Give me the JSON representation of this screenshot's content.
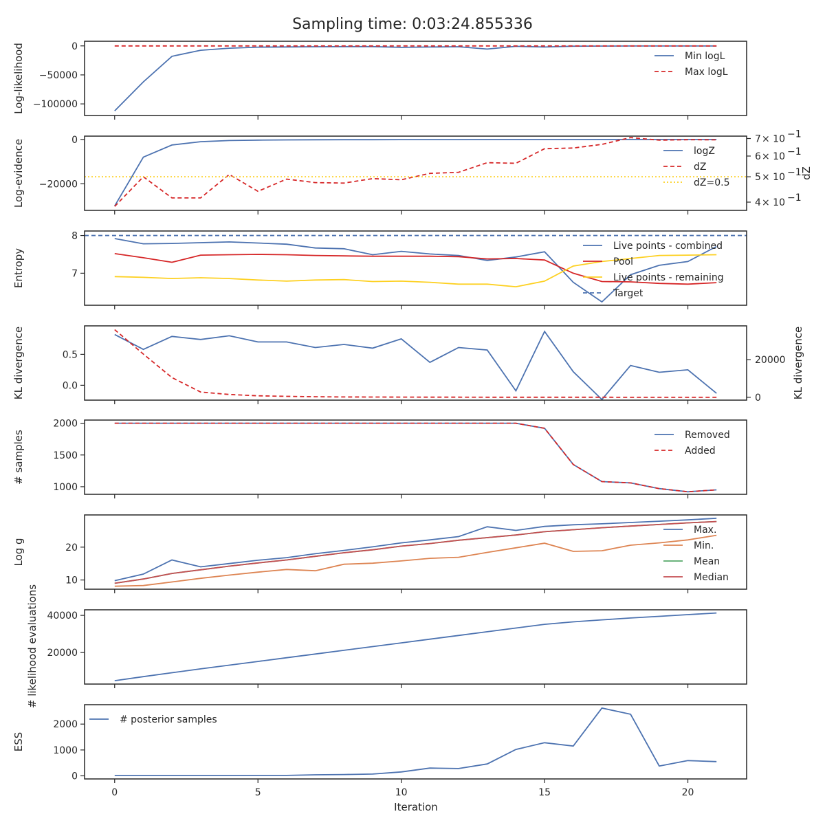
{
  "colors": {
    "blue": "#4c72b0",
    "red": "#d62728",
    "yellow": "#fdd020",
    "orange": "#dd8452",
    "green": "#55a868",
    "brown": "#c44e52"
  },
  "chart_data": {
    "type": "line",
    "title": "Sampling time: 0:03:24.855336",
    "shared_x": {
      "label": "Iteration",
      "ticks": [
        0,
        5,
        10,
        15,
        20
      ],
      "xlim": [
        -1.05,
        22.05
      ],
      "x": [
        0,
        1,
        2,
        3,
        4,
        5,
        6,
        7,
        8,
        9,
        10,
        11,
        12,
        13,
        14,
        15,
        16,
        17,
        18,
        19,
        20,
        21
      ]
    },
    "panels": [
      {
        "ylabel": "Log-likelihood",
        "ylim": [
          -120000,
          8000
        ],
        "yticks": [
          0,
          -50000,
          -100000
        ],
        "yticklabels": [
          "0",
          "−50000",
          "−100000"
        ],
        "legend": "top-right",
        "series": [
          {
            "name": "Min logL",
            "color": "blue",
            "dash": "solid",
            "values": [
              -112000,
              -62000,
              -18000,
              -7500,
              -4000,
              -2200,
              -1800,
              -1500,
              -1300,
              -1200,
              -2500,
              -2000,
              -1500,
              -5500,
              -800,
              -2000,
              -500,
              -300,
              -200,
              -200,
              -150,
              -120
            ]
          },
          {
            "name": "Max logL",
            "color": "red",
            "dash": "dashed",
            "values": [
              0,
              0,
              0,
              0,
              0,
              0,
              0,
              0,
              0,
              0,
              0,
              0,
              0,
              0,
              0,
              0,
              0,
              0,
              0,
              0,
              0,
              0
            ]
          }
        ]
      },
      {
        "ylabel": "Log-evidence",
        "ylim": [
          -32000,
          1500
        ],
        "yticks": [
          0,
          -20000
        ],
        "yticklabels": [
          "0",
          "−20000"
        ],
        "legend": "right",
        "series": [
          {
            "name": "logZ",
            "color": "blue",
            "dash": "solid",
            "values": [
              -30000,
              -8000,
              -2500,
              -1000,
              -500,
              -300,
              -200,
              -150,
              -120,
              -100,
              -90,
              -80,
              -70,
              -60,
              -50,
              -45,
              -40,
              -35,
              -30,
              -28,
              -26,
              -25
            ]
          },
          {
            "name": "dZ",
            "color": "red",
            "dash": "dashed",
            "axis": "right",
            "values": [
              0.385,
              0.5,
              0.415,
              0.415,
              0.51,
              0.44,
              0.49,
              0.475,
              0.473,
              0.492,
              0.487,
              0.515,
              0.52,
              0.566,
              0.563,
              0.64,
              0.644,
              0.665,
              0.706,
              0.69,
              0.693,
              0.692
            ]
          },
          {
            "name": "dZ=0.5",
            "color": "yellow",
            "dash": "dotted",
            "axis": "right",
            "hline": 0.5
          }
        ],
        "right_axis": {
          "label": "dZ",
          "scale": "log",
          "ylim": [
            0.372,
            0.715
          ],
          "ticks": [
            0.4,
            0.5,
            0.6,
            0.7
          ],
          "ticklabels": [
            {
              "mant": "4",
              "exp": "−1"
            },
            {
              "mant": "5",
              "exp": "−1"
            },
            {
              "mant": "6",
              "exp": "−1"
            },
            {
              "mant": "7",
              "exp": "−1"
            }
          ]
        }
      },
      {
        "ylabel": "Entropy",
        "ylim": [
          6.15,
          8.12
        ],
        "yticks": [
          8,
          7
        ],
        "yticklabels": [
          "8",
          "7"
        ],
        "legend": "right",
        "series": [
          {
            "name": "Live points - combined",
            "color": "blue",
            "dash": "solid",
            "values": [
              7.92,
              7.78,
              7.79,
              7.81,
              7.83,
              7.8,
              7.77,
              7.67,
              7.65,
              7.49,
              7.58,
              7.51,
              7.47,
              7.34,
              7.43,
              7.57,
              6.76,
              6.24,
              6.96,
              7.21,
              7.31,
              7.71
            ]
          },
          {
            "name": "Pool",
            "color": "red",
            "dash": "solid",
            "values": [
              7.52,
              7.41,
              7.29,
              7.48,
              7.49,
              7.5,
              7.49,
              7.47,
              7.46,
              7.45,
              7.45,
              7.45,
              7.44,
              7.38,
              7.39,
              7.35,
              7.0,
              6.78,
              6.77,
              6.73,
              6.71,
              6.75
            ]
          },
          {
            "name": "Live points - remaining",
            "color": "yellow",
            "dash": "solid",
            "values": [
              6.91,
              6.89,
              6.86,
              6.88,
              6.86,
              6.82,
              6.79,
              6.82,
              6.83,
              6.78,
              6.79,
              6.76,
              6.71,
              6.71,
              6.64,
              6.79,
              7.19,
              7.31,
              7.39,
              7.47,
              7.48,
              7.49
            ]
          },
          {
            "name": "Target",
            "color": "blue",
            "dash": "dashed",
            "hline": 8.0
          }
        ]
      },
      {
        "ylabel": "KL divergence",
        "ylim": [
          -0.24,
          0.96
        ],
        "yticks": [
          0.5,
          0.0
        ],
        "yticklabels": [
          "0.5",
          "0.0"
        ],
        "series": [
          {
            "name": "",
            "color": "blue",
            "dash": "solid",
            "values": [
              0.82,
              0.58,
              0.79,
              0.74,
              0.8,
              0.7,
              0.7,
              0.61,
              0.66,
              0.6,
              0.75,
              0.37,
              0.61,
              0.57,
              -0.09,
              0.87,
              0.22,
              -0.23,
              0.32,
              0.21,
              0.25,
              -0.13
            ]
          },
          {
            "name": "",
            "color": "red",
            "dash": "dashed",
            "axis": "right",
            "values": [
              36000,
              23000,
              10500,
              2800,
              1500,
              800,
              500,
              300,
              200,
              150,
              100,
              80,
              60,
              50,
              40,
              30,
              25,
              20,
              15,
              12,
              10,
              8
            ]
          }
        ],
        "right_axis": {
          "label": "KL divergence",
          "scale": "linear",
          "ylim": [
            -1500,
            38000
          ],
          "ticks": [
            20000,
            0
          ],
          "ticklabels": [
            "20000",
            "0"
          ]
        }
      },
      {
        "ylabel": "# samples",
        "ylim": [
          880,
          2050
        ],
        "yticks": [
          2000,
          1500,
          1000
        ],
        "yticklabels": [
          "2000",
          "1500",
          "1000"
        ],
        "legend": "top-right",
        "series": [
          {
            "name": "Removed",
            "color": "blue",
            "dash": "solid",
            "values": [
              2000,
              2000,
              2000,
              2000,
              2000,
              2000,
              2000,
              2000,
              2000,
              2000,
              2000,
              2000,
              2000,
              2000,
              2000,
              1920,
              1350,
              1080,
              1060,
              970,
              920,
              950
            ]
          },
          {
            "name": "Added",
            "color": "red",
            "dash": "dashed",
            "values": [
              2000,
              2000,
              2000,
              2000,
              2000,
              2000,
              2000,
              2000,
              2000,
              2000,
              2000,
              2000,
              2000,
              2000,
              2000,
              1920,
              1350,
              1080,
              1060,
              970,
              920,
              950
            ]
          }
        ]
      },
      {
        "ylabel": "Log g",
        "ylim": [
          7.2,
          29.8
        ],
        "yticks": [
          20,
          10
        ],
        "yticklabels": [
          "20",
          "10"
        ],
        "legend": "right",
        "series": [
          {
            "name": "Max.",
            "color": "blue",
            "dash": "solid",
            "values": [
              9.8,
              11.8,
              16.1,
              14,
              15,
              16,
              16.8,
              18,
              19,
              20.1,
              21.3,
              22.2,
              23.2,
              26.2,
              25.1,
              26.3,
              26.8,
              27.1,
              27.5,
              27.9,
              28.3,
              28.8
            ]
          },
          {
            "name": "Min.",
            "color": "orange",
            "dash": "solid",
            "values": [
              8.1,
              8.3,
              9.4,
              10.5,
              11.5,
              12.4,
              13.2,
              12.8,
              14.8,
              15.1,
              15.8,
              16.6,
              16.9,
              18.4,
              19.8,
              21.2,
              18.7,
              18.9,
              20.6,
              21.3,
              22.2,
              23.6
            ]
          },
          {
            "name": "Mean",
            "color": "green",
            "dash": "solid",
            "values": [
              9,
              10.3,
              12,
              13.1,
              14.2,
              15.2,
              16.1,
              17.2,
              18.3,
              19.2,
              20.3,
              21.1,
              22.1,
              22.9,
              23.7,
              24.7,
              25.3,
              25.9,
              26.4,
              26.9,
              27.4,
              27.8
            ]
          },
          {
            "name": "Median",
            "color": "brown",
            "dash": "solid",
            "values": [
              9,
              10.3,
              12,
              13.1,
              14.2,
              15.2,
              16.1,
              17.2,
              18.3,
              19.2,
              20.3,
              21.1,
              22.1,
              22.9,
              23.7,
              24.7,
              25.3,
              25.9,
              26.4,
              26.9,
              27.4,
              27.8
            ]
          }
        ]
      },
      {
        "ylabel": "# likelihood evaluations",
        "ylim": [
          3000,
          43000
        ],
        "yticks": [
          40000,
          20000
        ],
        "yticklabels": [
          "40000",
          "20000"
        ],
        "series": [
          {
            "name": "",
            "color": "blue",
            "dash": "solid",
            "values": [
              4800,
              7000,
              9100,
              11200,
              13200,
              15200,
              17200,
              19200,
              21200,
              23200,
              25200,
              27200,
              29200,
              31200,
              33200,
              35200,
              36500,
              37600,
              38600,
              39500,
              40400,
              41300
            ]
          }
        ]
      },
      {
        "ylabel": "ESS",
        "ylim": [
          -120,
          2750
        ],
        "yticks": [
          2000,
          1000,
          0
        ],
        "yticklabels": [
          "2000",
          "1000",
          "0"
        ],
        "legend": "top-left",
        "series": [
          {
            "name": "# posterior samples",
            "color": "blue",
            "dash": "solid",
            "values": [
              10,
              10,
              10,
              10,
              10,
              15,
              15,
              40,
              50,
              70,
              150,
              300,
              280,
              460,
              1020,
              1280,
              1150,
              2620,
              2380,
              380,
              590,
              550
            ]
          }
        ]
      }
    ]
  }
}
